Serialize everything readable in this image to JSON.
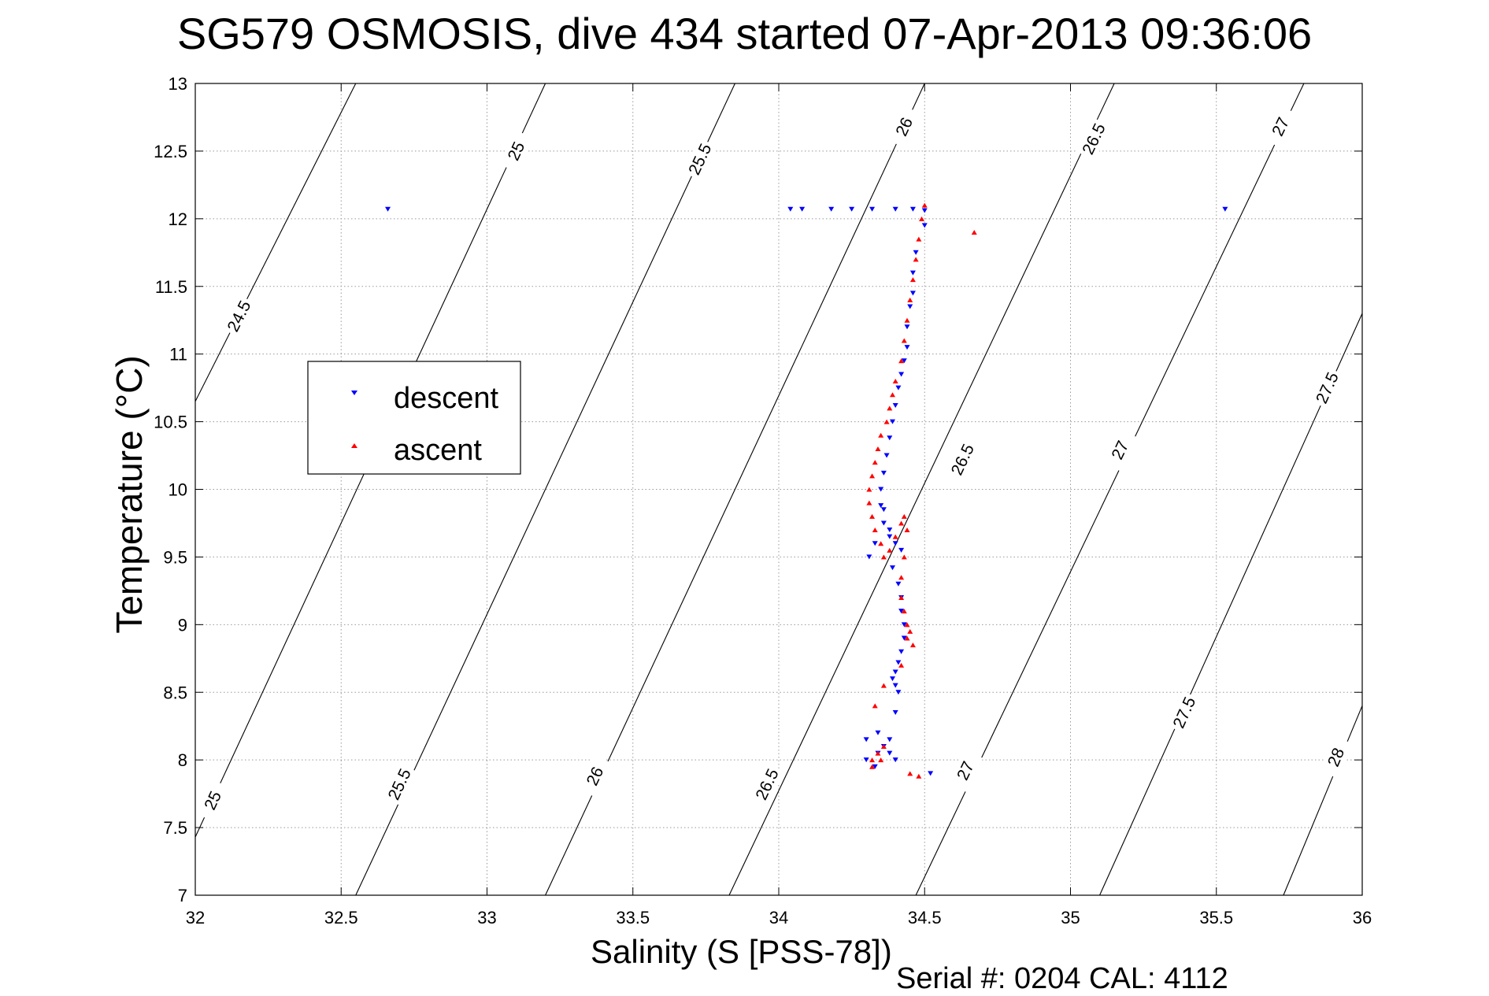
{
  "title": "SG579 OSMOSIS, dive 434 started 07-Apr-2013 09:36:06",
  "footer": "Serial #: 0204  CAL: 4112",
  "chart_data": {
    "type": "scatter",
    "xlabel": "Salinity (S [PSS-78])",
    "ylabel": "Temperature (°C)",
    "xlim": [
      32,
      36
    ],
    "ylim": [
      7,
      13
    ],
    "xticks": [
      "32",
      "32.5",
      "33",
      "33.5",
      "34",
      "34.5",
      "35",
      "35.5",
      "36"
    ],
    "yticks": [
      "7",
      "7.5",
      "8",
      "8.5",
      "9",
      "9.5",
      "10",
      "10.5",
      "11",
      "11.5",
      "12",
      "12.5",
      "13"
    ],
    "grid": true,
    "legend": {
      "position": "left",
      "entries": [
        "descent",
        "ascent"
      ]
    },
    "density_contours": [
      "24.5",
      "25",
      "25.5",
      "26",
      "26.5",
      "27",
      "27.5",
      "28"
    ],
    "series": [
      {
        "name": "descent",
        "color": "#0000ff",
        "marker": "triangle-down",
        "x": [
          32.66,
          34.04,
          34.08,
          34.18,
          34.25,
          34.32,
          34.4,
          34.46,
          34.5,
          35.53,
          34.5,
          34.47,
          34.46,
          34.46,
          34.45,
          34.44,
          34.44,
          34.43,
          34.42,
          34.41,
          34.4,
          34.39,
          34.38,
          34.37,
          34.36,
          34.35,
          34.35,
          34.36,
          34.38,
          34.4,
          34.42,
          34.38,
          34.33,
          34.31,
          34.36,
          34.39,
          34.41,
          34.42,
          34.42,
          34.43,
          34.43,
          34.42,
          34.41,
          34.4,
          34.39,
          34.4,
          34.41,
          34.4,
          34.38,
          34.36,
          34.34,
          34.3,
          34.33,
          34.38,
          34.3,
          34.34,
          34.4,
          34.52
        ],
        "y": [
          12.07,
          12.07,
          12.07,
          12.07,
          12.07,
          12.07,
          12.07,
          12.07,
          12.06,
          12.07,
          11.95,
          11.75,
          11.6,
          11.45,
          11.35,
          11.2,
          11.05,
          10.95,
          10.85,
          10.75,
          10.62,
          10.5,
          10.38,
          10.25,
          10.12,
          10.0,
          9.88,
          9.75,
          9.65,
          9.6,
          9.55,
          9.7,
          9.6,
          9.5,
          9.85,
          9.42,
          9.3,
          9.2,
          9.1,
          9.0,
          8.9,
          8.8,
          8.72,
          8.65,
          8.6,
          8.55,
          8.5,
          8.35,
          8.15,
          8.1,
          8.05,
          8.0,
          7.95,
          8.05,
          8.15,
          8.2,
          8.0,
          7.9
        ]
      },
      {
        "name": "ascent",
        "color": "#ff0000",
        "marker": "triangle-up",
        "x": [
          34.5,
          34.49,
          34.48,
          34.47,
          34.46,
          34.45,
          34.44,
          34.43,
          34.42,
          34.4,
          34.39,
          34.38,
          34.37,
          34.35,
          34.34,
          34.33,
          34.32,
          34.31,
          34.31,
          34.32,
          34.33,
          34.35,
          34.36,
          34.38,
          34.4,
          34.42,
          34.43,
          34.44,
          34.43,
          34.42,
          34.42,
          34.43,
          34.44,
          34.45,
          34.46,
          34.44,
          34.42,
          34.36,
          34.33,
          34.32,
          34.34,
          34.36,
          34.35,
          34.32,
          34.45,
          34.67,
          34.48
        ],
        "y": [
          12.1,
          12.0,
          11.85,
          11.7,
          11.55,
          11.4,
          11.25,
          11.1,
          10.95,
          10.8,
          10.7,
          10.6,
          10.5,
          10.4,
          10.3,
          10.2,
          10.1,
          10.0,
          9.9,
          9.8,
          9.7,
          9.6,
          9.5,
          9.55,
          9.65,
          9.75,
          9.8,
          9.7,
          9.5,
          9.35,
          9.2,
          9.1,
          9.0,
          8.95,
          8.85,
          8.9,
          8.7,
          8.55,
          8.4,
          8.0,
          8.05,
          8.1,
          8.0,
          7.95,
          7.9,
          11.9,
          7.88
        ]
      }
    ]
  }
}
